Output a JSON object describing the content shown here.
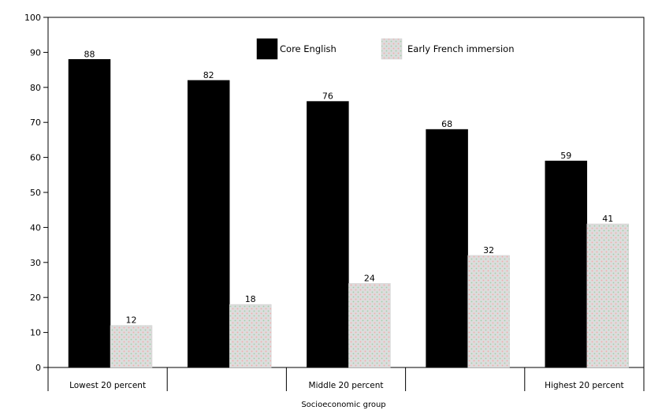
{
  "chart_data": {
    "type": "bar",
    "categories": [
      "Lowest 20 percent",
      "",
      "Middle 20 percent",
      "",
      "Highest 20 percent"
    ],
    "series": [
      {
        "name": "Core English",
        "values": [
          88,
          82,
          76,
          68,
          59
        ],
        "color": "#000000",
        "pattern": "solid"
      },
      {
        "name": "Early French immersion",
        "values": [
          12,
          18,
          24,
          32,
          41
        ],
        "color": "#d6d6d6",
        "pattern": "dotted"
      }
    ],
    "data_labels": {
      "Core English": [
        "88",
        "82",
        "76",
        "68",
        "59"
      ],
      "Early French immersion": [
        "12",
        "18",
        "24",
        "32",
        "41"
      ]
    },
    "xlabel": "Socioeconomic group",
    "ylabel": "",
    "ylim": [
      0,
      100
    ],
    "yticks": [
      0,
      10,
      20,
      30,
      40,
      50,
      60,
      70,
      80,
      90,
      100
    ],
    "grid": false,
    "legend_position": "top-center"
  }
}
